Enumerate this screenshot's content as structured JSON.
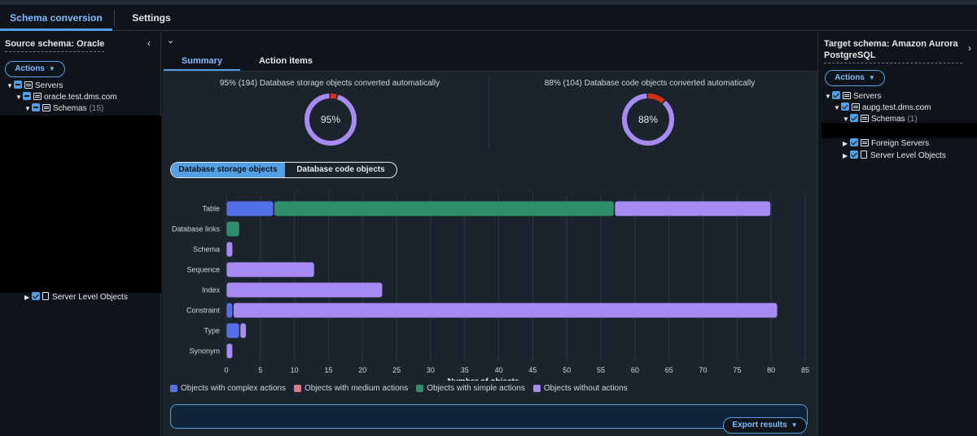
{
  "tabs": {
    "conversion": "Schema conversion",
    "settings": "Settings"
  },
  "left_panel": {
    "title": "Source schema: Oracle",
    "actions_label": "Actions",
    "tree": {
      "servers": "Servers",
      "host": "oracle.test.dms.com",
      "schemas": "Schemas",
      "schemas_count": "(15)",
      "server_level": "Server Level Objects"
    }
  },
  "center": {
    "subtabs": {
      "summary": "Summary",
      "action_items": "Action items"
    },
    "storage_caption": "95% (194) Database storage objects converted automatically",
    "storage_pct_label": "95%",
    "storage_pct": 0.95,
    "code_caption": "88% (104) Database code objects converted automatically",
    "code_pct_label": "88%",
    "code_pct": 0.88,
    "toggle": {
      "storage": "Database storage objects",
      "code": "Database code objects"
    },
    "export_label": "Export results"
  },
  "chart_data": {
    "type": "bar",
    "orientation": "horizontal",
    "stacked": true,
    "categories": [
      "Table",
      "Database links",
      "Schema",
      "Sequence",
      "Index",
      "Constraint",
      "Type",
      "Synonym"
    ],
    "series": [
      {
        "name": "Objects with complex actions",
        "color": "#5470e8",
        "values": [
          7,
          0,
          0,
          0,
          0,
          1,
          2,
          0
        ]
      },
      {
        "name": "Objects with medium actions",
        "color": "#e07a8d",
        "values": [
          0,
          0,
          0,
          0,
          0,
          0,
          0,
          0
        ]
      },
      {
        "name": "Objects with simple actions",
        "color": "#2f8f6b",
        "values": [
          50,
          2,
          0,
          0,
          0,
          0,
          0,
          0
        ]
      },
      {
        "name": "Objects without actions",
        "color": "#a88bf2",
        "values": [
          23,
          0,
          1,
          13,
          23,
          80,
          1,
          1
        ]
      }
    ],
    "xlabel": "Number of objects",
    "ylabel": "",
    "xlim": [
      0,
      85
    ],
    "xticks": [
      0,
      5,
      10,
      15,
      20,
      25,
      30,
      35,
      40,
      45,
      50,
      55,
      60,
      65,
      70,
      75,
      80,
      85
    ],
    "grid": true
  },
  "donut_colors": {
    "converted": "#a88bf2",
    "not_converted": "#d13212",
    "track": "#2a3340"
  },
  "right_panel": {
    "title": "Target schema: Amazon Aurora PostgreSQL",
    "actions_label": "Actions",
    "tree": {
      "servers": "Servers",
      "host": "aupg.test.dms.com",
      "schemas": "Schemas",
      "schemas_count": "(1)",
      "foreign": "Foreign Servers",
      "server_level": "Server Level Objects"
    }
  }
}
